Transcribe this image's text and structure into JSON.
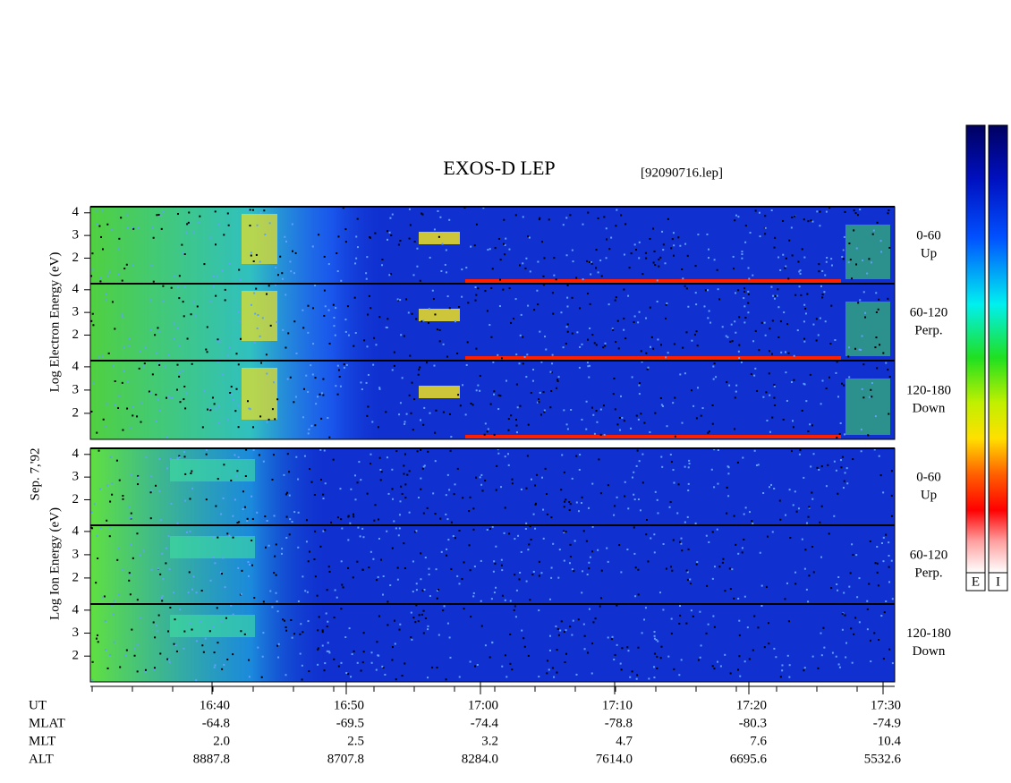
{
  "header": {
    "title": "EXOS-D LEP",
    "file": "[92090716.lep]"
  },
  "date": "Sep. 7,'92",
  "electron": {
    "axis_label": "Log Electron Energy (eV)",
    "panels": [
      {
        "angle": "0-60",
        "direction": "Up",
        "yticks": [
          4,
          3,
          2
        ]
      },
      {
        "angle": "60-120",
        "direction": "Perp.",
        "yticks": [
          4,
          3,
          2
        ]
      },
      {
        "angle": "120-180",
        "direction": "Down",
        "yticks": [
          4,
          3,
          2
        ]
      }
    ]
  },
  "ion": {
    "axis_label": "Log Ion Energy (eV)",
    "panels": [
      {
        "angle": "0-60",
        "direction": "Up",
        "yticks": [
          4,
          3,
          2
        ]
      },
      {
        "angle": "60-120",
        "direction": "Perp.",
        "yticks": [
          4,
          3,
          2
        ]
      },
      {
        "angle": "120-180",
        "direction": "Down",
        "yticks": [
          4,
          3,
          2
        ]
      }
    ]
  },
  "orbit_table": {
    "rows": [
      {
        "label": "UT",
        "values": [
          "16:40",
          "16:50",
          "17:00",
          "17:10",
          "17:20",
          "17:30"
        ]
      },
      {
        "label": "MLAT",
        "values": [
          "-64.8",
          "-69.5",
          "-74.4",
          "-78.8",
          "-80.3",
          "-74.9"
        ]
      },
      {
        "label": "MLT",
        "values": [
          "2.0",
          "2.5",
          "3.2",
          "4.7",
          "7.6",
          "10.4"
        ]
      },
      {
        "label": "ALT",
        "values": [
          "8887.8",
          "8707.8",
          "8284.0",
          "7614.0",
          "6695.6",
          "5532.6"
        ]
      }
    ]
  },
  "colorbar": {
    "labels": [
      "E",
      "I"
    ]
  }
}
